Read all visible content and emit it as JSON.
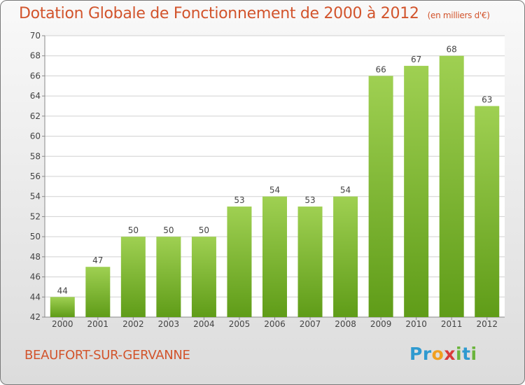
{
  "title": "Dotation Globale de Fonctionnement de 2000 à 2012",
  "subtitle": "(en milliers d'€)",
  "commune": "BEAUFORT-SUR-GERVANNE",
  "logo": {
    "letters": [
      "P",
      "r",
      "o",
      "x",
      "i",
      "t",
      "i"
    ],
    "colors": [
      "#2e9ad0",
      "#2e9ad0",
      "#f0a020",
      "#d93a3a",
      "#6ab43c",
      "#2e9ad0",
      "#6ab43c"
    ]
  },
  "colors": {
    "bar_light": "#9fd052",
    "bar_dark": "#5f9c18",
    "text": "#d2542c",
    "grid": "#d0d0d0"
  },
  "chart_data": {
    "type": "bar",
    "categories": [
      "2000",
      "2001",
      "2002",
      "2003",
      "2004",
      "2005",
      "2006",
      "2007",
      "2008",
      "2009",
      "2010",
      "2011",
      "2012"
    ],
    "values": [
      44,
      47,
      50,
      50,
      50,
      53,
      54,
      53,
      54,
      66,
      67,
      68,
      63
    ],
    "ylim": [
      42,
      70
    ],
    "yticks": [
      42,
      44,
      46,
      48,
      50,
      52,
      54,
      56,
      58,
      60,
      62,
      64,
      66,
      68,
      70
    ],
    "grid": "horizontal",
    "data_labels": true
  }
}
